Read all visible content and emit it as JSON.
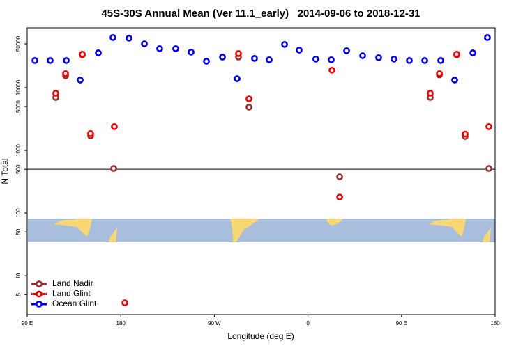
{
  "chart_data": {
    "type": "scatter",
    "title": "45S-30S Annual Mean (Ver 11.1_early)   2014-09-06 to 2018-12-31",
    "xlabel": "Longitude (deg E)",
    "ylabel": "N Total",
    "xlim": [
      90,
      540
    ],
    "xticks": [
      {
        "value": 90,
        "label": "90 E"
      },
      {
        "value": 180,
        "label": "180"
      },
      {
        "value": 270,
        "label": "90 W"
      },
      {
        "value": 360,
        "label": "0"
      },
      {
        "value": 450,
        "label": "90 E"
      },
      {
        "value": 540,
        "label": "180"
      }
    ],
    "ylim": [
      2.4,
      90000
    ],
    "yticks": [
      5,
      10,
      50,
      100,
      500,
      1000,
      5000,
      10000,
      50000
    ],
    "log_y": true,
    "hline": 500,
    "legend": "lower left",
    "series": [
      {
        "name": "Land Nadir",
        "color": "#9b2f2f",
        "x": [
          117.5,
          126.9,
          143,
          151,
          173.2,
          293.2,
          303.3,
          390.5,
          477.6,
          486.4,
          503.1,
          511.2,
          534
        ],
        "values": [
          6980,
          15500,
          33300,
          1710,
          514,
          30800,
          4890,
          378,
          6980,
          16000,
          33300,
          1670,
          514
        ]
      },
      {
        "name": "Land Glint",
        "color": "#ee0000",
        "x": [
          117.5,
          126.9,
          143,
          151,
          173.8,
          183.9,
          293.2,
          303.3,
          383.1,
          390.5,
          477.6,
          486.4,
          503.1,
          511.2,
          534
        ],
        "values": [
          8150,
          16700,
          34200,
          1850,
          2390,
          3.7,
          35000,
          6640,
          19000,
          180,
          8150,
          16700,
          34200,
          1820,
          2390
        ]
      },
      {
        "name": "Ocean Glint",
        "color": "#0000ee",
        "x": [
          97.4,
          112.1,
          127.6,
          141,
          158.4,
          172.5,
          187.9,
          202.7,
          217.4,
          232.8,
          247.6,
          262.4,
          277.8,
          291.9,
          308.6,
          322.7,
          337.5,
          351.6,
          367.6,
          382.4,
          397.2,
          412.6,
          428,
          442.8,
          457.5,
          472.3,
          487.7,
          501.1,
          518.6,
          532.6
        ],
        "values": [
          27100,
          27100,
          27100,
          13250,
          35900,
          63000,
          61500,
          50000,
          41900,
          41900,
          36900,
          26400,
          30800,
          13900,
          29300,
          27800,
          48900,
          39800,
          28600,
          27800,
          38800,
          32400,
          30100,
          28600,
          27100,
          27100,
          27100,
          13250,
          35900,
          63000
        ]
      }
    ]
  }
}
